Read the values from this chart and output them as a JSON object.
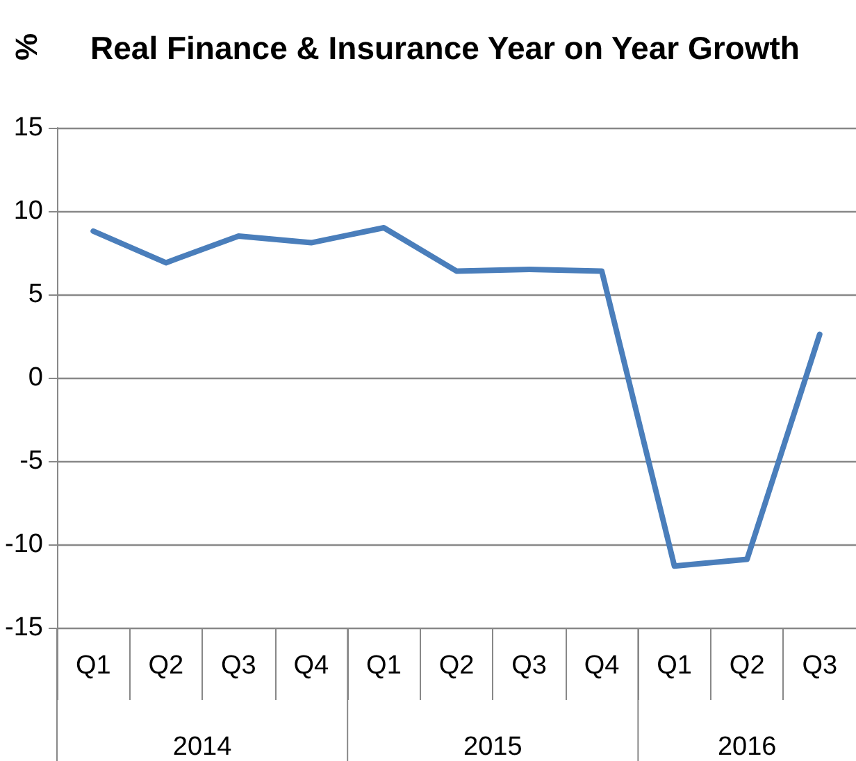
{
  "chart_data": {
    "type": "line",
    "title": "Real Finance & Insurance Year on Year Growth",
    "ylabel": "%",
    "categories": [
      "Q1",
      "Q2",
      "Q3",
      "Q4",
      "Q1",
      "Q2",
      "Q3",
      "Q4",
      "Q1",
      "Q2",
      "Q3"
    ],
    "series": [
      {
        "color": "#4a7ebb",
        "values": [
          8.8,
          6.9,
          8.5,
          8.1,
          9.0,
          6.4,
          6.5,
          6.4,
          -11.3,
          -10.9,
          2.6
        ]
      }
    ],
    "annotations": [
      "2014",
      "2015",
      "2016"
    ],
    "ylim": [
      -15,
      15
    ],
    "yticks": [
      -15,
      -10,
      -5,
      0,
      5,
      10,
      15
    ],
    "grid": "y",
    "marker": "none",
    "line_style": "solid"
  }
}
